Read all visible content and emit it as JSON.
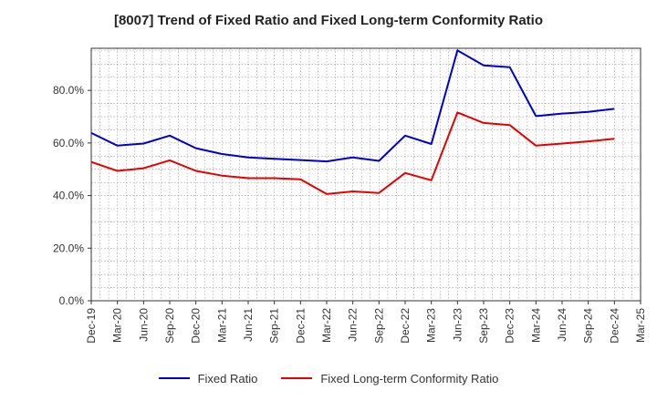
{
  "title": "[8007]  Trend of Fixed Ratio and Fixed Long-term Conformity Ratio",
  "colors": {
    "fixed_ratio": "#0000cc",
    "fixed_long_term": "#e60000",
    "grid": "#999999",
    "axis": "#333333"
  },
  "chart_data": {
    "type": "line",
    "title": "[8007]  Trend of Fixed Ratio and Fixed Long-term Conformity Ratio",
    "xlabel": "",
    "ylabel": "",
    "categories": [
      "Dec-19",
      "Mar-20",
      "Jun-20",
      "Sep-20",
      "Dec-20",
      "Mar-21",
      "Jun-21",
      "Sep-21",
      "Dec-21",
      "Mar-22",
      "Jun-22",
      "Sep-22",
      "Dec-22",
      "Mar-23",
      "Jun-23",
      "Sep-23",
      "Dec-23",
      "Mar-24",
      "Jun-24",
      "Sep-24",
      "Dec-24",
      "Mar-25"
    ],
    "yticks": [
      "0.0%",
      "20.0%",
      "40.0%",
      "60.0%",
      "80.0%"
    ],
    "ylim": [
      0,
      96
    ],
    "grid": true,
    "legend_position": "bottom",
    "series": [
      {
        "name": "Fixed Ratio",
        "color": "#0000cc",
        "values": [
          63.8,
          59.0,
          59.8,
          62.8,
          58.0,
          55.8,
          54.5,
          54.0,
          53.5,
          53.0,
          54.5,
          53.2,
          62.8,
          59.6,
          95.2,
          89.5,
          88.8,
          70.2,
          71.2,
          71.8,
          73.0,
          null
        ]
      },
      {
        "name": "Fixed Long-term Conformity Ratio",
        "color": "#e60000",
        "values": [
          52.8,
          49.4,
          50.4,
          53.4,
          49.4,
          47.6,
          46.6,
          46.6,
          46.2,
          40.6,
          41.6,
          41.0,
          48.6,
          45.8,
          71.6,
          67.6,
          66.8,
          59.0,
          59.8,
          60.6,
          61.6,
          null
        ]
      }
    ]
  }
}
